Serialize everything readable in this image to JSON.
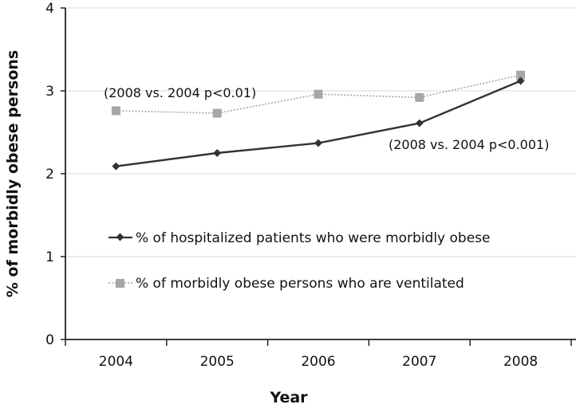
{
  "chart_data": {
    "type": "line",
    "title": "",
    "xlabel": "Year",
    "ylabel": "% of morbidly obese persons",
    "categories": [
      "2004",
      "2005",
      "2006",
      "2007",
      "2008"
    ],
    "ylim": [
      0,
      4
    ],
    "yticks": [
      "0",
      "1",
      "2",
      "3",
      "4"
    ],
    "grid": "horizontal",
    "series": [
      {
        "name": "% of hospitalized patients who were morbidly obese",
        "values": [
          2.09,
          2.25,
          2.37,
          2.61,
          3.12
        ],
        "color": "#333333",
        "line_style": "solid",
        "marker": "diamond"
      },
      {
        "name": "% of morbidly obese persons who are ventilated",
        "values": [
          2.76,
          2.73,
          2.96,
          2.92,
          3.19
        ],
        "color": "#a6a6a6",
        "line_style": "dotted",
        "marker": "square"
      }
    ],
    "annotations": [
      {
        "text": "(2008 vs. 2004 p<0.01)",
        "series": 1
      },
      {
        "text": "(2008 vs. 2004 p<0.001)",
        "series": 0
      }
    ],
    "legend_position": "inside-lower-left"
  }
}
